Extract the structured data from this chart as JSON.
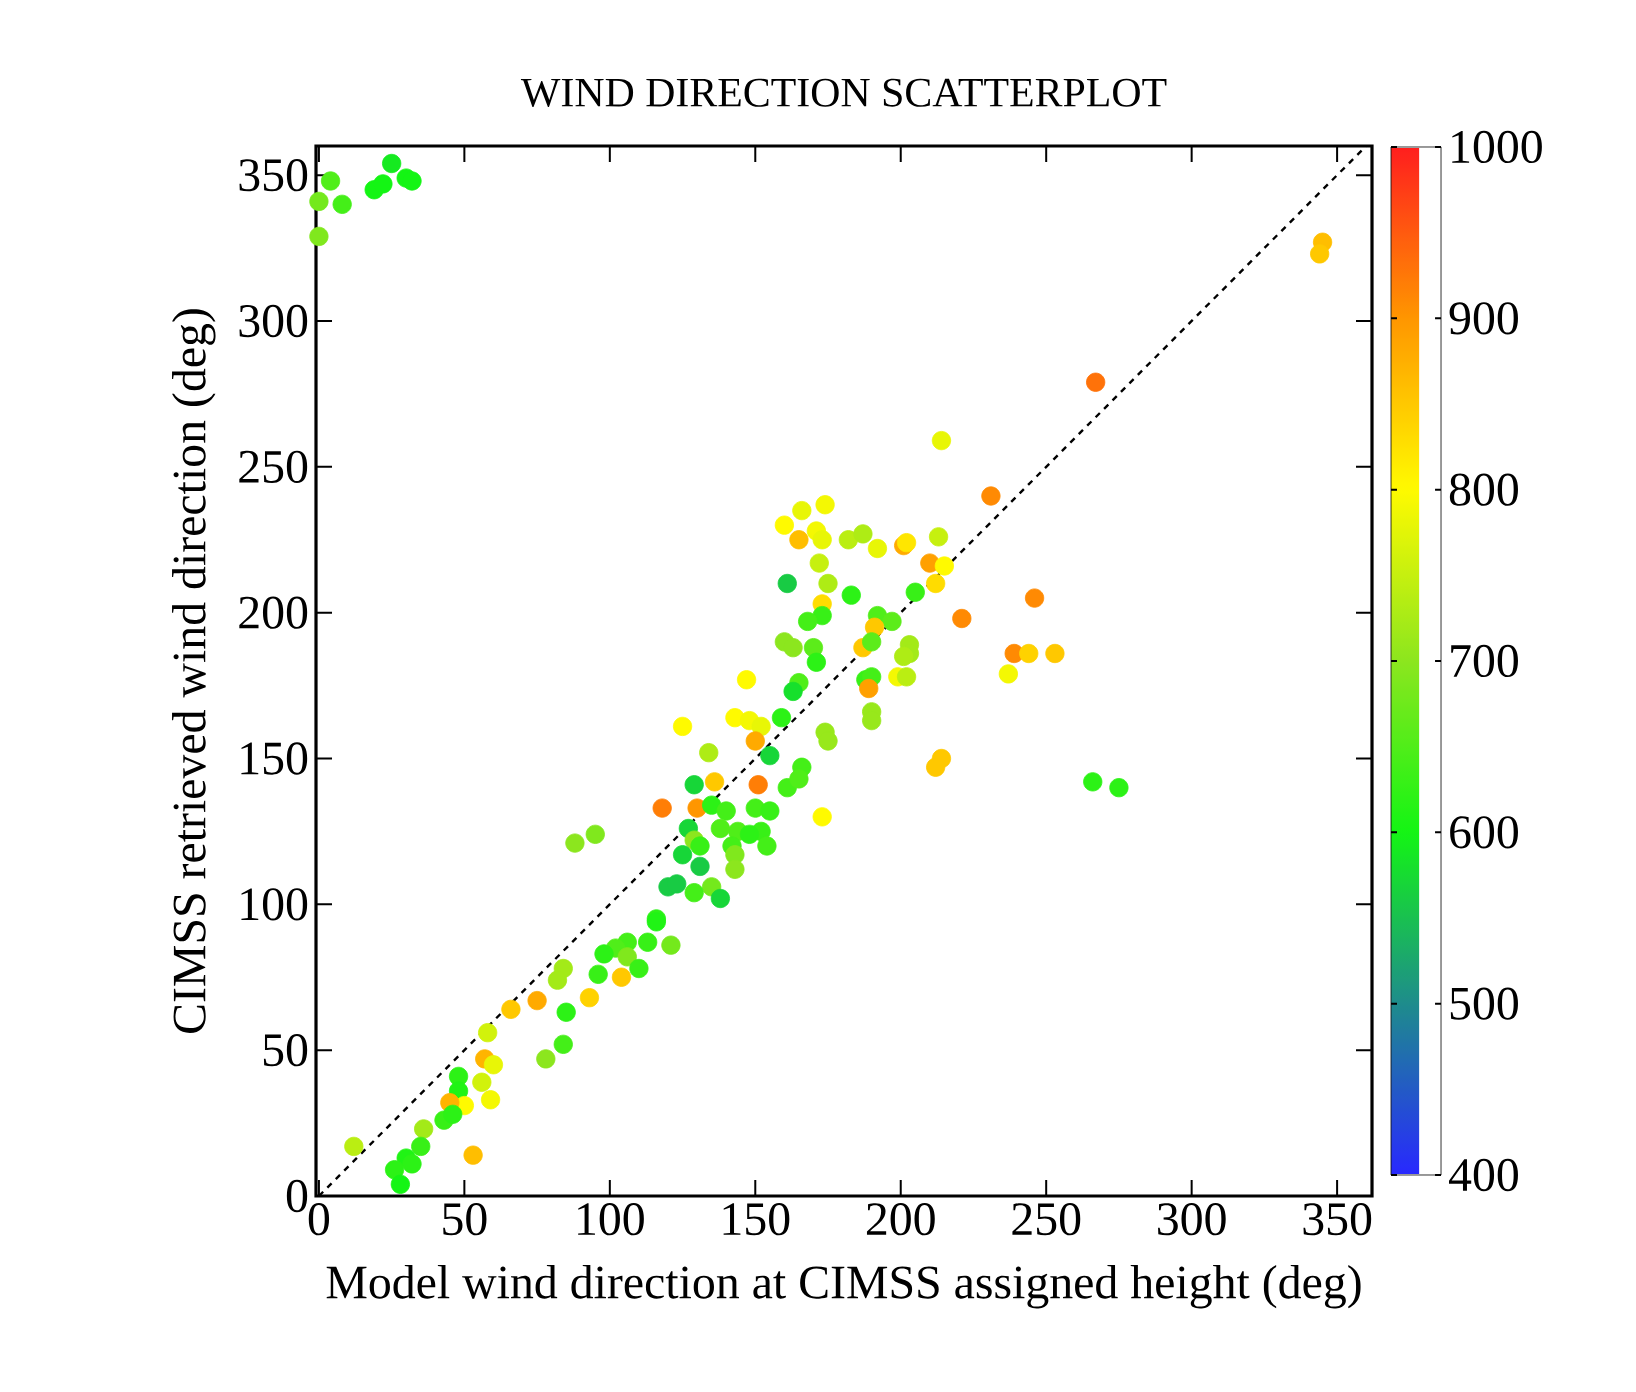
{
  "chart_data": {
    "type": "scatter",
    "title": "WIND DIRECTION SCATTERPLOT",
    "xlabel": "Model wind direction at CIMSS assigned height (deg)",
    "ylabel": "CIMSS retrieved wind direction (deg)",
    "xlim": [
      -1,
      362
    ],
    "ylim": [
      0,
      360
    ],
    "xticks": [
      0,
      50,
      100,
      150,
      200,
      250,
      300,
      350
    ],
    "yticks": [
      0,
      50,
      100,
      150,
      200,
      250,
      300,
      350
    ],
    "clim": [
      400,
      1000
    ],
    "cticks": [
      400,
      500,
      600,
      700,
      800,
      900,
      1000
    ],
    "grid": false,
    "series": [
      {
        "marker": "circle",
        "colors": [
          "#80e81d",
          "#74e91c",
          "#50ee19",
          "#44ef18",
          "#14f514",
          "#14f514",
          "#15ea20",
          "#14f514",
          "#14f514",
          "#ffbe00",
          "#ffc800",
          "#ff7209",
          "#e8f606",
          "#ff8a03",
          "#baee12",
          "#aeec15",
          "#e8f606",
          "#ffaa00",
          "#ffe600",
          "#c6f00f",
          "#ffa000",
          "#fffa00",
          "#ffdc00",
          "#2cf216",
          "#38f017",
          "#ff8a03",
          "#50ee19",
          "#5cec1a",
          "#ff8a03",
          "#ffc800",
          "#ffc800",
          "#5cec1a",
          "#a3ea18",
          "#a3ea18",
          "#aeec15",
          "#ff8a03",
          "#ffd200",
          "#ffc800",
          "#38f017",
          "#44ef18",
          "#f4f803",
          "#baee12",
          "#ffa000",
          "#f4f803",
          "#98e81b",
          "#98e81b",
          "#ffc800",
          "#ffc800",
          "#2cf216",
          "#2cf216",
          "#f4f803",
          "#e8f606",
          "#fffa00",
          "#f4f803",
          "#ffbe00",
          "#e8f606",
          "#c6f00f",
          "#18cb44",
          "#aeec15",
          "#ffdc00",
          "#38f017",
          "#44ef18",
          "#8ce61e",
          "#8ce61e",
          "#5cec1a",
          "#2cf216",
          "#50ee19",
          "#16e02c",
          "#fffa00",
          "#98e81b",
          "#98e81b",
          "#fffa00",
          "#f4f803",
          "#e8f606",
          "#2cf216",
          "#ffaa00",
          "#fffa00",
          "#aeec15",
          "#17d638",
          "#ff7e06",
          "#ffc800",
          "#17d638",
          "#ff7e06",
          "#ff9600",
          "#2cf216",
          "#44ef18",
          "#44ef18",
          "#44ef18",
          "#50ee19",
          "#fffa00",
          "#44ef18",
          "#38f017",
          "#50ee19",
          "#38f017",
          "#17d638",
          "#8ce61e",
          "#50ee19",
          "#8ce61e",
          "#80e81d",
          "#38f017",
          "#44ef18",
          "#2cf216",
          "#44ef18",
          "#17d638",
          "#18cb44",
          "#80e81d",
          "#8ce61e",
          "#18cb44",
          "#18cb44",
          "#74e91c",
          "#17d638",
          "#44ef18",
          "#2cf216",
          "#20f415",
          "#74e91c",
          "#38f017",
          "#44ef18",
          "#50ee19",
          "#2cf216",
          "#80e81d",
          "#38f017",
          "#ffc800",
          "#38f017",
          "#a3ea18",
          "#a3ea18",
          "#ffd200",
          "#2cf216",
          "#ffaa00",
          "#ffc800",
          "#d1f20c",
          "#44ef18",
          "#8ce61e",
          "#2cf216",
          "#20f415",
          "#ffb400",
          "#e8f606",
          "#d1f20c",
          "#f4f803",
          "#fffa00",
          "#ffb400",
          "#38f017",
          "#2cf216",
          "#a3ea18",
          "#38f017",
          "#20f415",
          "#2cf216",
          "#2cf216",
          "#14f514",
          "#baee12",
          "#ffbe00"
        ],
        "x": [
          0,
          0,
          4,
          8,
          19,
          22,
          25,
          30,
          32,
          345,
          344,
          267,
          214,
          231,
          182,
          187,
          192,
          201,
          202,
          213,
          210,
          215,
          212,
          183,
          205,
          246,
          192,
          197,
          221,
          191,
          187,
          190,
          203,
          203,
          201,
          239,
          244,
          253,
          188,
          190,
          199,
          202,
          189,
          237,
          190,
          190,
          214,
          212,
          266,
          275,
          174,
          166,
          160,
          171,
          165,
          173,
          172,
          161,
          175,
          173,
          173,
          168,
          160,
          163,
          170,
          171,
          165,
          163,
          147,
          174,
          175,
          143,
          148,
          152,
          159,
          150,
          125,
          134,
          155,
          151,
          136,
          129,
          118,
          130,
          135,
          140,
          161,
          166,
          165,
          173,
          150,
          155,
          144,
          152,
          127,
          129,
          138,
          88,
          95,
          131,
          142,
          148,
          154,
          125,
          131,
          143,
          143,
          120,
          123,
          135,
          138,
          129,
          116,
          116,
          121,
          113,
          106,
          102,
          98,
          106,
          110,
          104,
          96,
          84,
          82,
          93,
          85,
          75,
          66,
          58,
          84,
          78,
          48,
          48,
          57,
          60,
          56,
          59,
          50,
          45,
          43,
          46,
          36,
          35,
          30,
          26,
          32,
          28,
          12,
          53
        ],
        "values": [
          329,
          341,
          348,
          340,
          345,
          347,
          354,
          349,
          348,
          327,
          323,
          279,
          259,
          240,
          225,
          227,
          222,
          223,
          224,
          226,
          217,
          216,
          210,
          206,
          207,
          205,
          199,
          197,
          198,
          195,
          188,
          190,
          189,
          186,
          185,
          186,
          186,
          186,
          177,
          178,
          178,
          178,
          174,
          179,
          166,
          163,
          150,
          147,
          142,
          140,
          237,
          235,
          230,
          228,
          225,
          225,
          217,
          210,
          210,
          203,
          199,
          197,
          190,
          188,
          188,
          183,
          176,
          173,
          177,
          159,
          156,
          164,
          163,
          161,
          164,
          156,
          161,
          152,
          151,
          141,
          142,
          141,
          133,
          133,
          134,
          132,
          140,
          147,
          143,
          130,
          133,
          132,
          125,
          125,
          126,
          122,
          126,
          121,
          124,
          120,
          120,
          124,
          120,
          117,
          113,
          117,
          112,
          106,
          107,
          106,
          102,
          104,
          95,
          94,
          86,
          87,
          87,
          85,
          83,
          82,
          78,
          75,
          76,
          78,
          74,
          68,
          63,
          67,
          64,
          56,
          52,
          47,
          41,
          36,
          47,
          45,
          39,
          33,
          31,
          32,
          26,
          28,
          23,
          17,
          13,
          9,
          11,
          4,
          17,
          14
        ],
        "cvalues": [
          690,
          680,
          650,
          640,
          600,
          600,
          590,
          600,
          600,
          860,
          850,
          930,
          780,
          910,
          740,
          730,
          780,
          880,
          820,
          750,
          890,
          800,
          830,
          620,
          630,
          910,
          650,
          660,
          910,
          850,
          850,
          660,
          720,
          720,
          730,
          910,
          840,
          850,
          630,
          640,
          790,
          740,
          890,
          790,
          710,
          710,
          850,
          850,
          620,
          620,
          790,
          780,
          800,
          790,
          860,
          780,
          750,
          560,
          730,
          830,
          630,
          640,
          700,
          700,
          660,
          620,
          650,
          580,
          800,
          710,
          710,
          800,
          790,
          780,
          620,
          880,
          800,
          730,
          570,
          920,
          850,
          570,
          920,
          900,
          620,
          640,
          640,
          640,
          650,
          800,
          640,
          630,
          650,
          630,
          570,
          700,
          650,
          700,
          690,
          630,
          640,
          620,
          640,
          570,
          560,
          690,
          700,
          560,
          560,
          680,
          570,
          640,
          620,
          610,
          680,
          630,
          640,
          650,
          620,
          690,
          630,
          850,
          630,
          720,
          720,
          840,
          620,
          880,
          850,
          760,
          640,
          700,
          620,
          610,
          870,
          780,
          760,
          790,
          800,
          870,
          630,
          620,
          720,
          630,
          610,
          620,
          620,
          600,
          740,
          860
        ]
      },
      {
        "type": "line",
        "x": [
          0,
          360
        ],
        "values": [
          0,
          360
        ],
        "color": "#000000",
        "line_style": "dashed",
        "marker": "none"
      }
    ]
  }
}
